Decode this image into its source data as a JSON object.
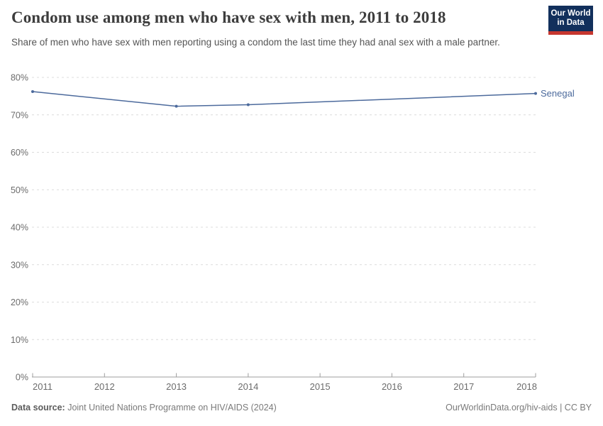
{
  "header": {
    "title": "Condom use among men who have sex with men, 2011 to 2018",
    "subtitle": "Share of men who have sex with men reporting using a condom the last time they had anal sex with a male partner.",
    "logo": {
      "line1": "Our World",
      "line2": "in Data",
      "bg_color": "#12305c",
      "accent_color": "#c6372f"
    }
  },
  "chart_data": {
    "type": "line",
    "title": "Condom use among men who have sex with men, 2011 to 2018",
    "xlabel": "",
    "ylabel": "",
    "x_range": [
      2011,
      2018
    ],
    "y_range": [
      0,
      80
    ],
    "x_ticks": [
      2011,
      2012,
      2013,
      2014,
      2015,
      2016,
      2017,
      2018
    ],
    "y_ticks": [
      0,
      10,
      20,
      30,
      40,
      50,
      60,
      70,
      80
    ],
    "y_tick_suffix": "%",
    "grid": "horizontal-dashed",
    "legend": "end-of-line-label",
    "series": [
      {
        "name": "Senegal",
        "color": "#4c6a9c",
        "x": [
          2011,
          2013,
          2014,
          2018
        ],
        "values": [
          76.2,
          72.3,
          72.7,
          75.7
        ]
      }
    ]
  },
  "footer": {
    "datasource_label": "Data source:",
    "datasource_value": " Joint United Nations Programme on HIV/AIDS (2024)",
    "credit": "OurWorldinData.org/hiv-aids | CC BY"
  },
  "colors": {
    "line": "#4c6a9c",
    "grid": "#dcdcdc",
    "axis": "#9e9e9e",
    "tick_label": "#6c6c6c",
    "title": "#3d3d3d",
    "subtitle": "#555555"
  }
}
